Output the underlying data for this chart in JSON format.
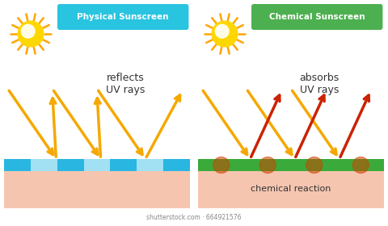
{
  "bg_color": "#ffffff",
  "fig_w": 4.8,
  "fig_h": 2.8,
  "dpi": 100,
  "left_panel": {
    "title": "Physical Sunscreen",
    "title_bg": "#29c4e0",
    "title_color": "#ffffff",
    "label": "reflects\nUV rays",
    "skin_color": "#f5c5b0",
    "screen_color": "#29b6e0",
    "screen_stripe_color": "#b8e8f8",
    "incoming_color": "#f5a800",
    "reflected_color": "#f5a800",
    "sun_color": "#FFD700",
    "sun_ray_color": "#FFA500",
    "sun_inner_color": "#FFFACD"
  },
  "right_panel": {
    "title": "Chemical Sunscreen",
    "title_bg": "#4caf50",
    "title_color": "#ffffff",
    "label": "absorbs\nUV rays",
    "skin_color": "#f5c5b0",
    "screen_color": "#3aaa3a",
    "incoming_color": "#f5a800",
    "reflected_color": "#cc2200",
    "reaction_label": "chemical reaction",
    "reaction_spot_color": "#cc4400",
    "sun_color": "#FFD700",
    "sun_ray_color": "#FFA500",
    "sun_inner_color": "#FFFACD"
  },
  "watermark": "shutterstock.com · 664921576"
}
